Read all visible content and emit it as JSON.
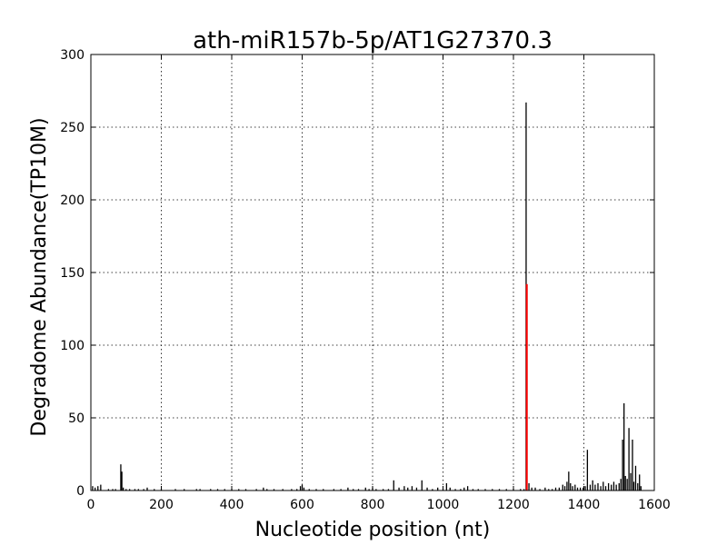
{
  "chart_data": {
    "type": "bar",
    "title": "ath-miR157b-5p/AT1G27370.3",
    "xlabel": "Nucleotide position (nt)",
    "ylabel": "Degradome Abundance(TP10M)",
    "xlim": [
      0,
      1600
    ],
    "ylim": [
      0,
      300
    ],
    "xticks": [
      0,
      200,
      400,
      600,
      800,
      1000,
      1200,
      1400,
      1600
    ],
    "yticks": [
      0,
      50,
      100,
      150,
      200,
      250,
      300
    ],
    "grid": true,
    "series": [
      {
        "color": "#000000",
        "points": [
          [
            5,
            3
          ],
          [
            12,
            2
          ],
          [
            20,
            3
          ],
          [
            28,
            4
          ],
          [
            50,
            1
          ],
          [
            62,
            1
          ],
          [
            70,
            1
          ],
          [
            85,
            18
          ],
          [
            88,
            13
          ],
          [
            92,
            2
          ],
          [
            100,
            1
          ],
          [
            110,
            1
          ],
          [
            125,
            1
          ],
          [
            135,
            1
          ],
          [
            150,
            1
          ],
          [
            160,
            2
          ],
          [
            180,
            1
          ],
          [
            200,
            1
          ],
          [
            240,
            1
          ],
          [
            265,
            1
          ],
          [
            300,
            1
          ],
          [
            310,
            1
          ],
          [
            340,
            1
          ],
          [
            360,
            1
          ],
          [
            380,
            1
          ],
          [
            400,
            1
          ],
          [
            420,
            1
          ],
          [
            440,
            1
          ],
          [
            470,
            1
          ],
          [
            490,
            2
          ],
          [
            500,
            1
          ],
          [
            520,
            1
          ],
          [
            545,
            1
          ],
          [
            570,
            1
          ],
          [
            585,
            1
          ],
          [
            595,
            3
          ],
          [
            600,
            4
          ],
          [
            605,
            2
          ],
          [
            620,
            1
          ],
          [
            640,
            1
          ],
          [
            660,
            1
          ],
          [
            690,
            1
          ],
          [
            710,
            1
          ],
          [
            730,
            2
          ],
          [
            745,
            1
          ],
          [
            760,
            1
          ],
          [
            780,
            2
          ],
          [
            790,
            1
          ],
          [
            800,
            2
          ],
          [
            810,
            1
          ],
          [
            830,
            1
          ],
          [
            845,
            1
          ],
          [
            860,
            7
          ],
          [
            875,
            2
          ],
          [
            890,
            3
          ],
          [
            900,
            2
          ],
          [
            912,
            3
          ],
          [
            925,
            2
          ],
          [
            940,
            7
          ],
          [
            955,
            2
          ],
          [
            970,
            1
          ],
          [
            985,
            2
          ],
          [
            1000,
            1
          ],
          [
            1010,
            5
          ],
          [
            1020,
            2
          ],
          [
            1035,
            1
          ],
          [
            1050,
            1
          ],
          [
            1060,
            2
          ],
          [
            1070,
            3
          ],
          [
            1085,
            1
          ],
          [
            1100,
            1
          ],
          [
            1120,
            1
          ],
          [
            1140,
            1
          ],
          [
            1160,
            1
          ],
          [
            1180,
            1
          ],
          [
            1200,
            1
          ],
          [
            1220,
            1
          ],
          [
            1230,
            1
          ],
          [
            1236,
            267
          ],
          [
            1244,
            5
          ],
          [
            1252,
            2
          ],
          [
            1262,
            2
          ],
          [
            1275,
            1
          ],
          [
            1290,
            2
          ],
          [
            1300,
            1
          ],
          [
            1310,
            1
          ],
          [
            1320,
            2
          ],
          [
            1330,
            2
          ],
          [
            1340,
            4
          ],
          [
            1346,
            3
          ],
          [
            1352,
            6
          ],
          [
            1357,
            13
          ],
          [
            1362,
            5
          ],
          [
            1368,
            3
          ],
          [
            1375,
            4
          ],
          [
            1382,
            2
          ],
          [
            1390,
            2
          ],
          [
            1398,
            2
          ],
          [
            1404,
            3
          ],
          [
            1410,
            28
          ],
          [
            1418,
            4
          ],
          [
            1425,
            7
          ],
          [
            1432,
            4
          ],
          [
            1440,
            5
          ],
          [
            1448,
            3
          ],
          [
            1455,
            6
          ],
          [
            1462,
            3
          ],
          [
            1470,
            5
          ],
          [
            1478,
            4
          ],
          [
            1485,
            6
          ],
          [
            1492,
            4
          ],
          [
            1500,
            5
          ],
          [
            1505,
            8
          ],
          [
            1510,
            35
          ],
          [
            1514,
            60
          ],
          [
            1518,
            10
          ],
          [
            1523,
            8
          ],
          [
            1528,
            43
          ],
          [
            1533,
            12
          ],
          [
            1538,
            35
          ],
          [
            1542,
            6
          ],
          [
            1547,
            17
          ],
          [
            1553,
            5
          ],
          [
            1558,
            11
          ],
          [
            1562,
            3
          ]
        ]
      },
      {
        "color": "#ff0000",
        "points": [
          [
            1238,
            142
          ]
        ]
      }
    ]
  }
}
